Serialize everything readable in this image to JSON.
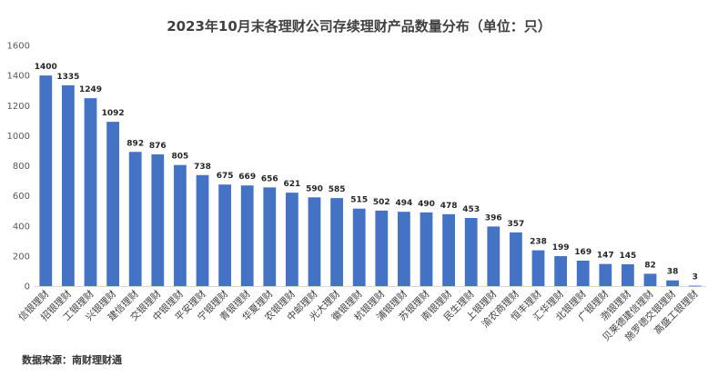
{
  "chart_data": {
    "type": "bar",
    "title": "2023年10月末各理财公司存续理财产品数量分布（单位：只）",
    "categories": [
      "信银理财",
      "招银理财",
      "工银理财",
      "兴银理财",
      "建信理财",
      "交银理财",
      "中银理财",
      "平安理财",
      "宁银理财",
      "青银理财",
      "华夏理财",
      "农银理财",
      "中邮理财",
      "光大理财",
      "徽银理财",
      "杭银理财",
      "浦银理财",
      "苏银理财",
      "南银理财",
      "民生理财",
      "上银理财",
      "渝农商理财",
      "恒丰理财",
      "汇华理财",
      "北银理财",
      "广银理财",
      "渤银理财",
      "贝莱德建信理财",
      "施罗德交银理财",
      "高盛工银理财"
    ],
    "values": [
      1400,
      1335,
      1249,
      1092,
      892,
      876,
      805,
      738,
      675,
      669,
      656,
      621,
      590,
      585,
      515,
      502,
      494,
      490,
      478,
      453,
      396,
      357,
      238,
      199,
      169,
      147,
      145,
      82,
      38,
      3
    ],
    "y_ticks": [
      "0",
      "200",
      "400",
      "600",
      "800",
      "1000",
      "1200",
      "1400",
      "1600"
    ],
    "ylim": [
      0,
      1600
    ],
    "bar_color": "#4472C4",
    "grid": false
  },
  "source": "数据来源：南财理财通"
}
